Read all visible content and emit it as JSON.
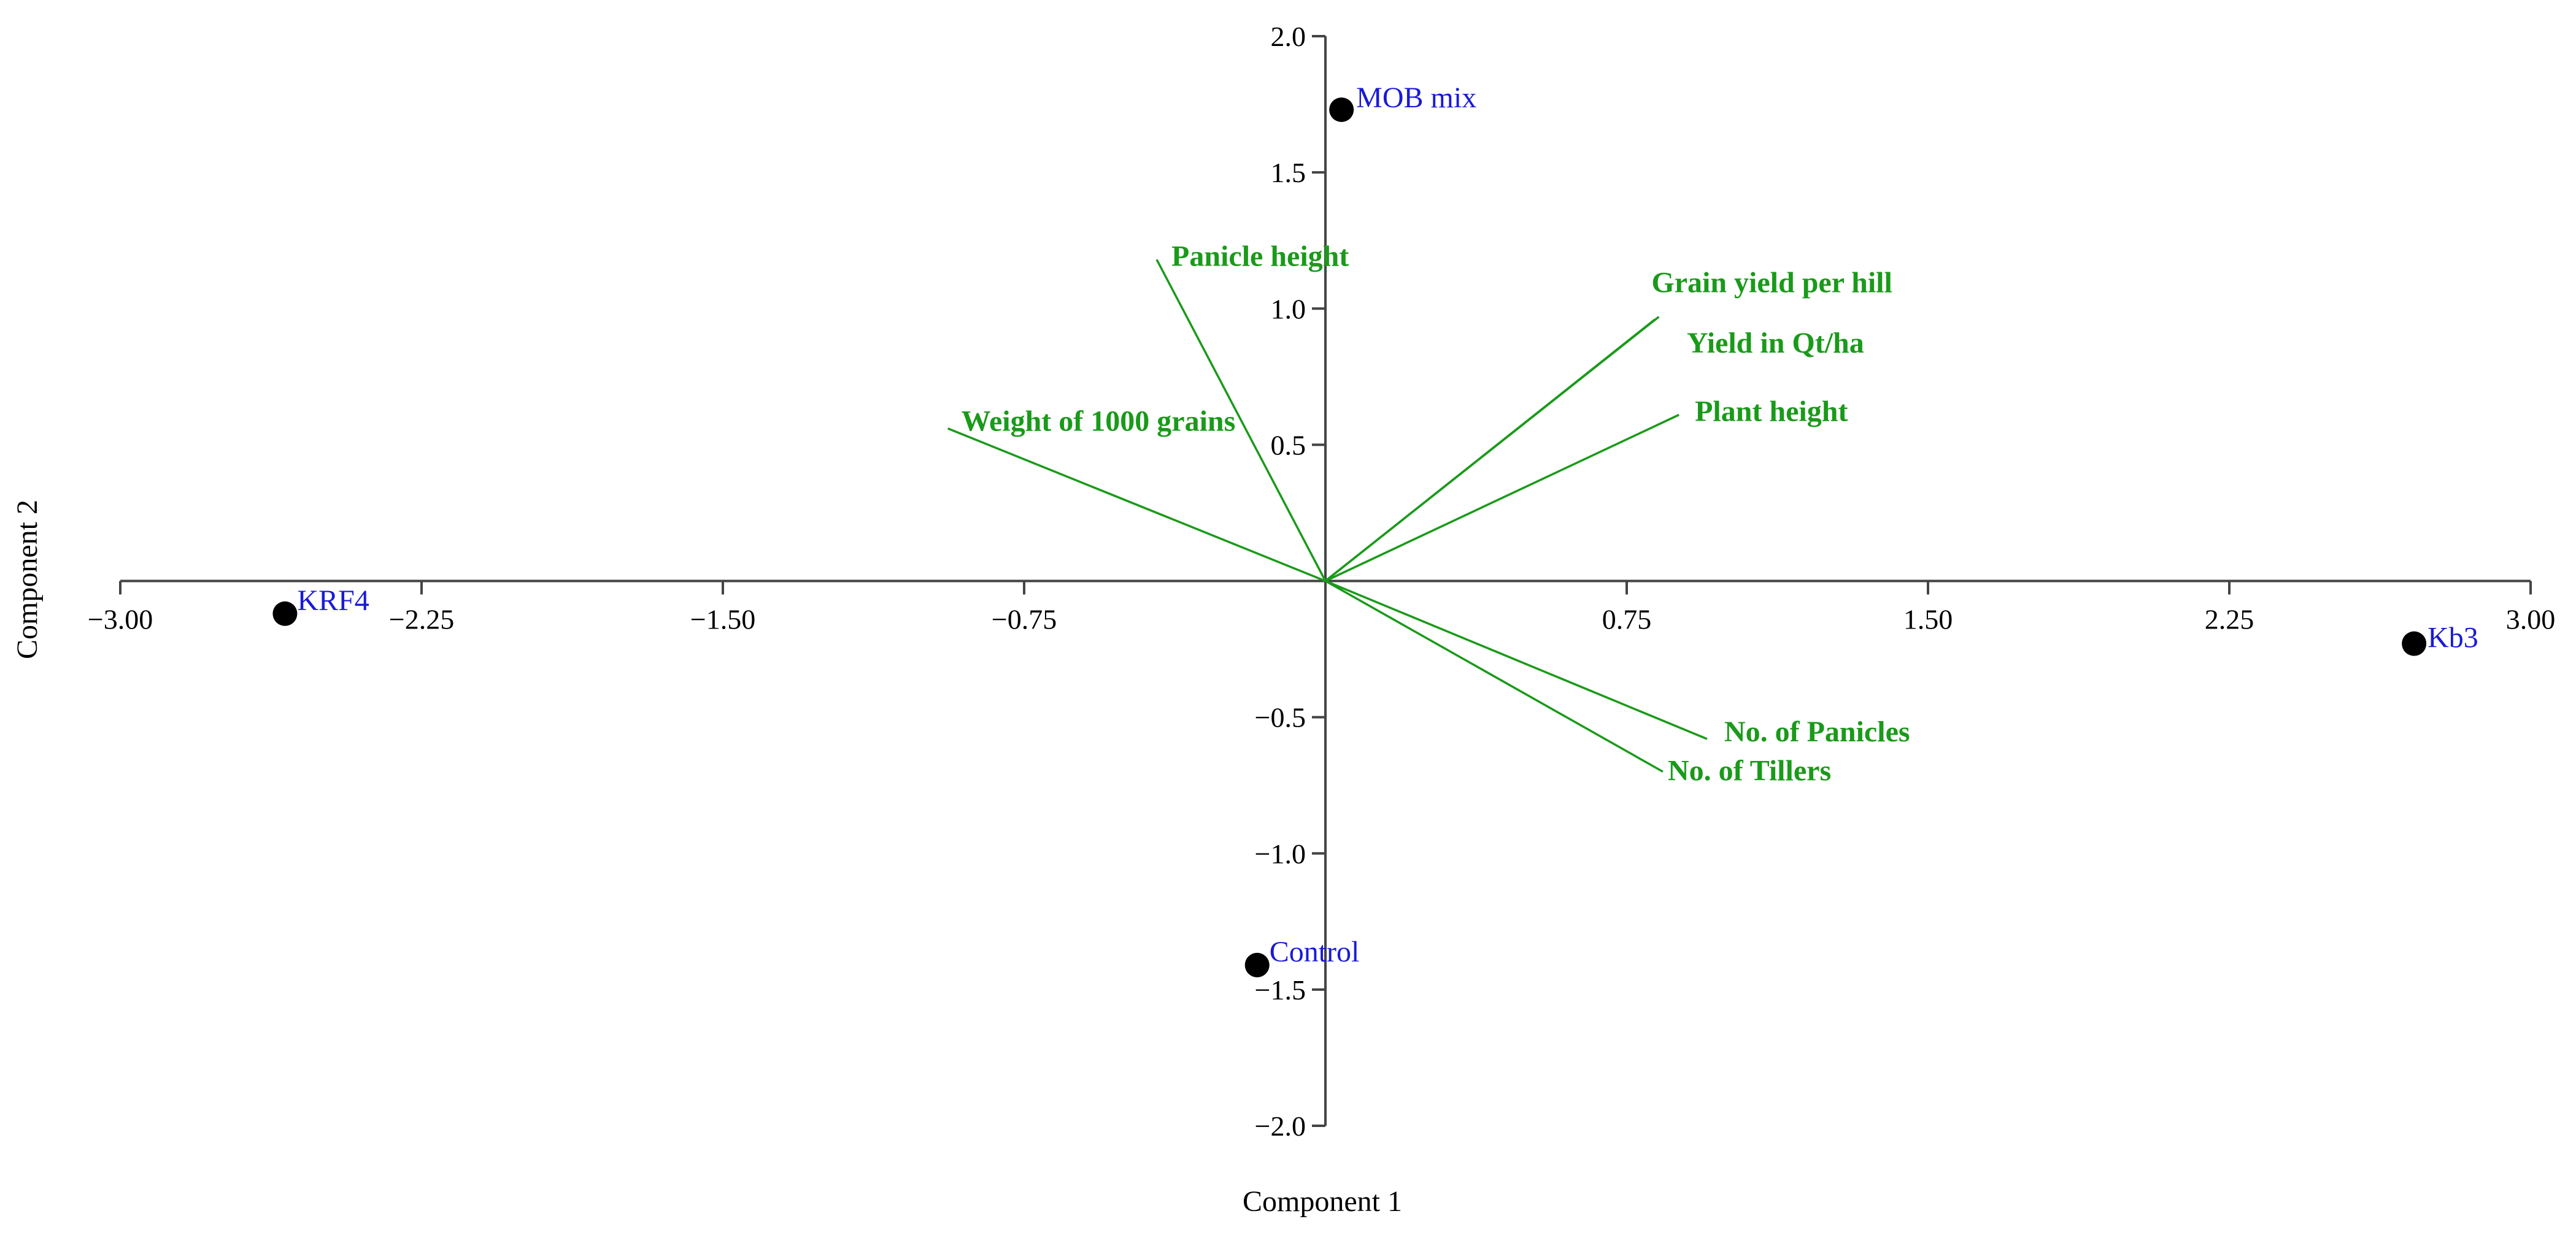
{
  "chart_data": {
    "type": "scatter",
    "title": "",
    "xlabel": "Component 1",
    "ylabel": "Component 2",
    "xlim": [
      -3.0,
      3.0
    ],
    "ylim": [
      -2.0,
      2.0
    ],
    "x_ticks": [
      {
        "value": -3.0,
        "label": "−3.00"
      },
      {
        "value": -2.25,
        "label": "−2.25"
      },
      {
        "value": -1.5,
        "label": "−1.50"
      },
      {
        "value": -0.75,
        "label": "−0.75"
      },
      {
        "value": 0.75,
        "label": "0.75"
      },
      {
        "value": 1.5,
        "label": "1.50"
      },
      {
        "value": 2.25,
        "label": "2.25"
      },
      {
        "value": 3.0,
        "label": "3.00"
      }
    ],
    "y_ticks": [
      {
        "value": 2.0,
        "label": "2.0"
      },
      {
        "value": 1.5,
        "label": "1.5"
      },
      {
        "value": 1.0,
        "label": "1.0"
      },
      {
        "value": 0.5,
        "label": "0.5"
      },
      {
        "value": -0.5,
        "label": "−0.5"
      },
      {
        "value": -1.0,
        "label": "−1.0"
      },
      {
        "value": -1.5,
        "label": "−1.5"
      },
      {
        "value": -2.0,
        "label": "−2.0"
      }
    ],
    "grid": false,
    "points": [
      {
        "label": "MOB mix",
        "x": 0.04,
        "y": 1.73
      },
      {
        "label": "KRF4",
        "x": -2.59,
        "y": -0.12
      },
      {
        "label": "Kb3",
        "x": 2.71,
        "y": -0.23
      },
      {
        "label": "Control",
        "x": -0.17,
        "y": -1.41
      }
    ],
    "vectors": [
      {
        "label": "Panicle height",
        "x": -0.42,
        "y": 1.18
      },
      {
        "label": "Weight of 1000 grains",
        "x": -0.94,
        "y": 0.56
      },
      {
        "label": "Grain yield per hill",
        "x": 0.83,
        "y": 0.97
      },
      {
        "label": "Yield in Qt/ha",
        "x": 0.82,
        "y": 0.96
      },
      {
        "label": "Plant height",
        "x": 0.88,
        "y": 0.61
      },
      {
        "label": "No. of Panicles",
        "x": 0.95,
        "y": -0.58
      },
      {
        "label": "No. of Tillers",
        "x": 0.84,
        "y": -0.7
      }
    ],
    "colors": {
      "vectors": "#1a9a1a",
      "point_labels": "#1a1ad6",
      "points": "#000000",
      "axes": "#444444"
    }
  }
}
